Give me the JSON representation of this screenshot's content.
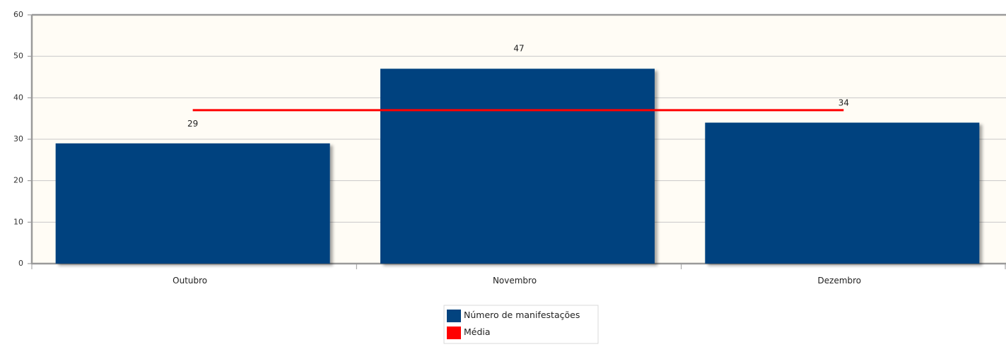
{
  "chart_data": {
    "type": "bar",
    "categories": [
      "Outubro",
      "Novembro",
      "Dezembro"
    ],
    "series": [
      {
        "name": "Número de manifestações",
        "type": "bar",
        "values": [
          29,
          47,
          34
        ],
        "color": "#02437f",
        "data_labels": [
          "29",
          "47",
          "34"
        ]
      },
      {
        "name": "Média",
        "type": "line",
        "values": [
          37,
          37,
          37
        ],
        "color": "#ff0000"
      }
    ],
    "ylim": [
      0,
      60
    ],
    "yticks": [
      0,
      10,
      20,
      30,
      40,
      50,
      60
    ],
    "ytick_labels": [
      "0",
      "10",
      "20",
      "30",
      "40",
      "50",
      "60"
    ],
    "grid": true,
    "plot_background": "#fffcf5",
    "legend": {
      "placement": "bottom-center",
      "items": [
        "Número de manifestações",
        "Média"
      ]
    }
  }
}
